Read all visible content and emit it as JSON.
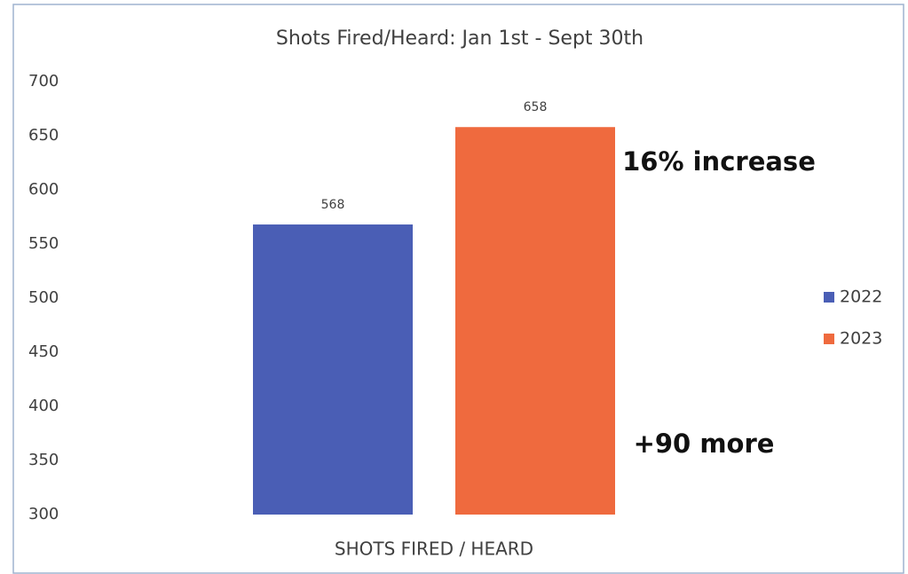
{
  "chart_data": {
    "type": "bar",
    "title": "Shots Fired/Heard: Jan 1st - Sept 30th",
    "categories": [
      "SHOTS FIRED / HEARD"
    ],
    "series": [
      {
        "name": "2022",
        "color": "#4a5eb5",
        "values": [
          568
        ]
      },
      {
        "name": "2023",
        "color": "#ef6a3e",
        "values": [
          658
        ]
      }
    ],
    "ylim": [
      300,
      700
    ],
    "yticks": [
      300,
      350,
      400,
      450,
      500,
      550,
      600,
      650,
      700
    ],
    "grid": false,
    "legend": "right",
    "annotations": [
      "16% increase",
      "+90 more"
    ]
  }
}
